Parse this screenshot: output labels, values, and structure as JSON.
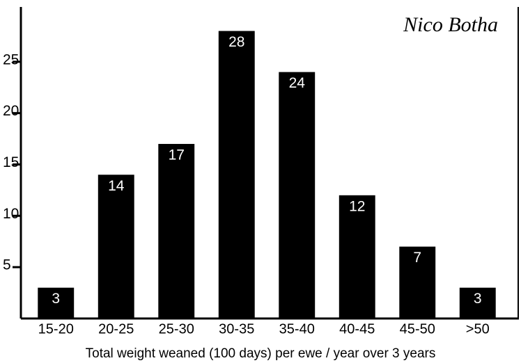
{
  "chart_data": {
    "type": "bar",
    "annotation": "Nico Botha",
    "x_label": "Total weight weaned (100 days) per ewe / year over 3 years",
    "categories": [
      "15-20",
      "20-25",
      "25-30",
      "30-35",
      "35-40",
      "40-45",
      "45-50",
      ">50"
    ],
    "values": [
      3,
      14,
      17,
      28,
      24,
      12,
      7,
      3
    ],
    "color": "#000000",
    "ylim": [
      0,
      30
    ],
    "yticks": [
      5,
      10,
      15,
      20,
      25
    ],
    "grid": false
  }
}
